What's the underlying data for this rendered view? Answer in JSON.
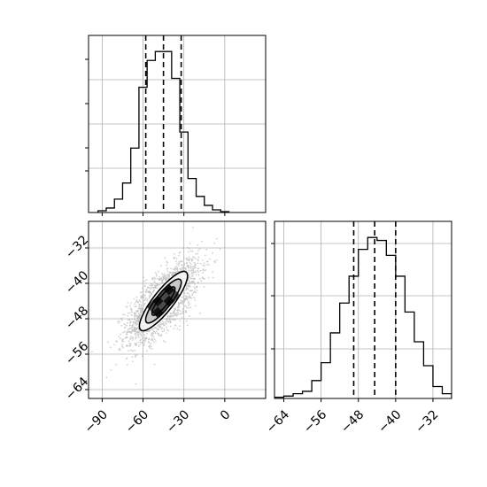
{
  "chart_data": [
    {
      "type": "histogram",
      "panel": "marginal-x",
      "grid": true,
      "xlim": [
        -100,
        30
      ],
      "x_ticks": [
        -90,
        -60,
        -30,
        0
      ],
      "x_tick_labels_shown": false,
      "y_tick_labels_shown": false,
      "bin_edges": [
        -93,
        -87,
        -81,
        -75,
        -69,
        -63,
        -57,
        -51,
        -45,
        -39,
        -33,
        -27,
        -21,
        -15,
        -9,
        -3,
        3
      ],
      "counts": [
        2,
        5,
        15,
        33,
        72,
        140,
        170,
        180,
        180,
        150,
        90,
        38,
        18,
        8,
        3,
        1
      ],
      "quantiles": [
        -58,
        -45,
        -32
      ]
    },
    {
      "type": "histogram2d",
      "panel": "joint",
      "grid": true,
      "xlim": [
        -100,
        30
      ],
      "ylim": [
        -66,
        -26
      ],
      "x_ticks": [
        -90,
        -60,
        -30,
        0
      ],
      "x_tick_labels": [
        "−90",
        "−60",
        "−30",
        "0"
      ],
      "y_ticks": [
        -32,
        -40,
        -48,
        -56,
        -64
      ],
      "y_tick_labels": [
        "−32",
        "−40",
        "−48",
        "−56",
        "−64"
      ],
      "contours": [
        {
          "level": 1,
          "cx": -45,
          "cy": -44,
          "rx": 13,
          "ry": 3.5,
          "angle_deg": -52
        },
        {
          "level": 2,
          "cx": -45,
          "cy": -44,
          "rx": 20,
          "ry": 5.5,
          "angle_deg": -52
        },
        {
          "level": 3,
          "cx": -45,
          "cy": -44,
          "rx": 27,
          "ry": 7.5,
          "angle_deg": -52
        }
      ],
      "center": [
        -45,
        -44
      ],
      "spread": [
        13,
        4.6
      ],
      "correlation": 0.7
    },
    {
      "type": "histogram",
      "panel": "marginal-y",
      "grid": true,
      "xlim": [
        -66,
        -28
      ],
      "x_ticks": [
        -64,
        -56,
        -48,
        -40,
        -32
      ],
      "x_tick_labels": [
        "−64",
        "−56",
        "−48",
        "−40",
        "−32"
      ],
      "y_tick_labels_shown": false,
      "bin_edges": [
        -66,
        -64,
        -62,
        -60,
        -58,
        -56,
        -54,
        -52,
        -50,
        -48,
        -46,
        -44,
        -42,
        -40,
        -38,
        -36,
        -34,
        -32,
        -30,
        -28
      ],
      "counts": [
        2,
        4,
        8,
        12,
        30,
        60,
        110,
        160,
        205,
        250,
        270,
        265,
        240,
        205,
        145,
        95,
        55,
        20,
        8
      ],
      "quantiles": [
        -49,
        -44.5,
        -40
      ]
    }
  ]
}
